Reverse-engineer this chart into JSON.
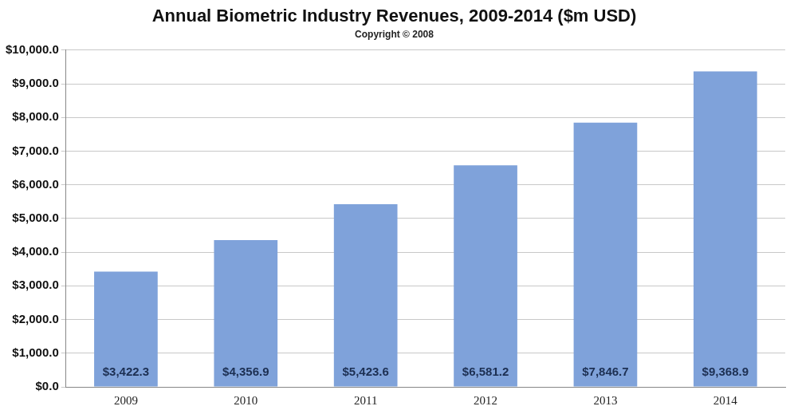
{
  "chart_data": {
    "type": "bar",
    "title": "Annual Biometric Industry Revenues, 2009-2014 ($m USD)",
    "subtitle": "Copyright © 2008",
    "categories": [
      "2009",
      "2010",
      "2011",
      "2012",
      "2013",
      "2014"
    ],
    "values": [
      3422.3,
      4356.9,
      5423.6,
      6581.2,
      7846.7,
      9368.9
    ],
    "value_labels": [
      "$3,422.3",
      "$4,356.9",
      "$5,423.6",
      "$6,581.2",
      "$7,846.7",
      "$9,368.9"
    ],
    "color": "#7fa2da",
    "ylim": [
      0,
      10000
    ],
    "yticks": [
      {
        "value": 0,
        "label": "$0.0"
      },
      {
        "value": 1000,
        "label": "$1,000.0"
      },
      {
        "value": 2000,
        "label": "$2,000.0"
      },
      {
        "value": 3000,
        "label": "$3,000.0"
      },
      {
        "value": 4000,
        "label": "$4,000.0"
      },
      {
        "value": 5000,
        "label": "$5,000.0"
      },
      {
        "value": 6000,
        "label": "$6,000.0"
      },
      {
        "value": 7000,
        "label": "$7,000.0"
      },
      {
        "value": 8000,
        "label": "$8,000.0"
      },
      {
        "value": 9000,
        "label": "$9,000.0"
      },
      {
        "value": 10000,
        "label": "$10,000.0"
      }
    ],
    "grid": "y",
    "legend": false
  }
}
